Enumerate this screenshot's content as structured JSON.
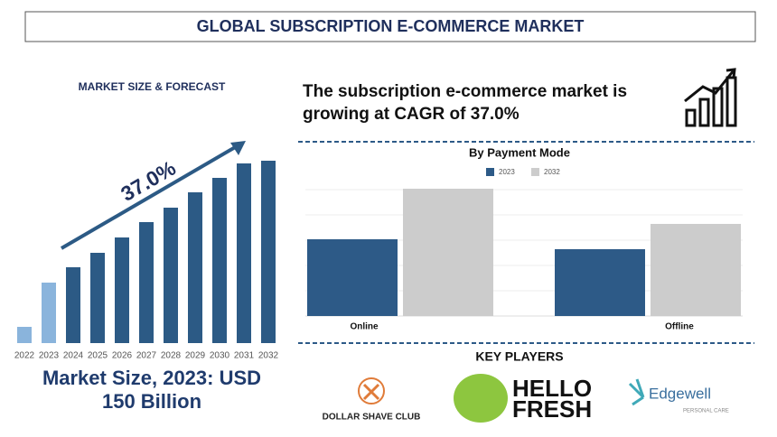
{
  "title": "GLOBAL SUBSCRIPTION E-COMMERCE MARKET",
  "chart_data": [
    {
      "type": "bar",
      "title": "MARKET SIZE & FORECAST",
      "categories": [
        "2022",
        "2023",
        "2024",
        "2025",
        "2026",
        "2027",
        "2028",
        "2029",
        "2030",
        "2031",
        "2032"
      ],
      "values": [
        18,
        67,
        84,
        100,
        117,
        134,
        150,
        167,
        183,
        199,
        202
      ],
      "colors": [
        "#8ab4dc",
        "#8ab4dc",
        "#2c5a85",
        "#2c5a85",
        "#2c5a85",
        "#2c5a85",
        "#2c5a85",
        "#2c5a85",
        "#2c5a85",
        "#2c5a85",
        "#2c5a85"
      ],
      "annotation": "37.0%"
    },
    {
      "type": "grouped-bar",
      "title": "By Payment Mode",
      "categories": [
        "Online",
        "Offline"
      ],
      "series": [
        {
          "name": "2023",
          "color": "#2d5a87",
          "values": [
            85,
            74
          ]
        },
        {
          "name": "2032",
          "color": "#cccccc",
          "values": [
            141,
            102
          ]
        }
      ]
    }
  ],
  "headline": [
    "The subscription e-commerce market is",
    "growing at CAGR of 37.0%"
  ],
  "market_size": [
    "Market Size, 2023: USD",
    "150 Billion"
  ],
  "key_players": {
    "title": "KEY PLAYERS",
    "logos": [
      "DOLLAR SHAVE CLUB",
      "HELLO",
      "FRESH",
      "Edgewell",
      "PERSONAL CARE"
    ]
  }
}
